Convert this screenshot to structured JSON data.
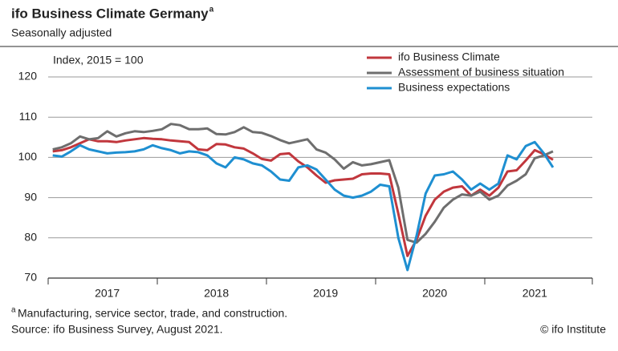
{
  "chart_data": {
    "type": "line",
    "title": "ifo Business Climate Germany",
    "title_marker": "a",
    "subtitle": "Seasonally adjusted",
    "y_label": "Index, 2015 = 100",
    "footnote": "Manufacturing, service sector, trade, and construction.",
    "source": "Source: ifo Business Survey, August 2021.",
    "credit": "© ifo Institute",
    "categories": [
      null,
      null,
      null,
      null,
      null,
      null,
      "2017",
      null,
      null,
      null,
      null,
      null,
      null,
      null,
      null,
      null,
      null,
      null,
      "2018",
      null,
      null,
      null,
      null,
      null,
      null,
      null,
      null,
      null,
      null,
      null,
      "2019",
      null,
      null,
      null,
      null,
      null,
      null,
      null,
      null,
      null,
      null,
      null,
      "2020",
      null,
      null,
      null,
      null,
      null,
      null,
      null,
      null,
      null,
      null,
      "2021",
      null,
      null
    ],
    "series": [
      {
        "name": "ifo Business Climate",
        "color": "#c1373d",
        "values": [
          101.5,
          101.8,
          102.5,
          103.5,
          104.5,
          104.0,
          104.0,
          103.8,
          104.2,
          104.5,
          104.8,
          104.6,
          104.5,
          104.2,
          104.0,
          103.8,
          102.0,
          101.8,
          103.3,
          103.2,
          102.5,
          102.2,
          101.0,
          99.6,
          99.2,
          100.8,
          101.0,
          99.0,
          97.5,
          95.5,
          93.7,
          94.3,
          94.5,
          94.7,
          95.8,
          96.0,
          96.0,
          95.8,
          86.0,
          75.5,
          79.5,
          85.5,
          89.5,
          91.5,
          92.5,
          92.8,
          90.5,
          92.0,
          90.5,
          92.5,
          96.5,
          96.8,
          99.2,
          101.8,
          100.8,
          99.4
        ]
      },
      {
        "name": "Assessment of business situation",
        "color": "#6e6e6e",
        "values": [
          102.0,
          102.5,
          103.5,
          105.2,
          104.5,
          104.8,
          106.5,
          105.2,
          106.0,
          106.5,
          106.3,
          106.6,
          107.0,
          108.3,
          108.0,
          107.0,
          107.0,
          107.2,
          105.8,
          105.7,
          106.3,
          107.5,
          106.3,
          106.1,
          105.3,
          104.3,
          103.5,
          104.0,
          104.5,
          102.0,
          101.2,
          99.5,
          97.2,
          98.8,
          98.0,
          98.3,
          98.8,
          99.3,
          92.5,
          79.5,
          78.8,
          81.0,
          84.0,
          87.5,
          89.5,
          90.8,
          90.5,
          91.5,
          89.5,
          90.5,
          93.0,
          94.2,
          95.8,
          99.8,
          100.5,
          101.5
        ]
      },
      {
        "name": "Business expectations",
        "color": "#1e8fd1",
        "values": [
          100.5,
          100.2,
          101.5,
          103.0,
          102.0,
          101.5,
          101.0,
          101.2,
          101.3,
          101.5,
          102.0,
          103.0,
          102.3,
          101.8,
          101.0,
          101.5,
          101.3,
          100.5,
          98.5,
          97.5,
          100.0,
          99.5,
          98.5,
          98.0,
          96.5,
          94.5,
          94.2,
          97.5,
          98.0,
          97.0,
          94.5,
          92.0,
          90.5,
          90.0,
          90.5,
          91.5,
          93.2,
          92.8,
          80.0,
          72.0,
          80.5,
          91.0,
          95.5,
          95.8,
          96.5,
          94.5,
          92.0,
          93.5,
          92.0,
          93.5,
          100.5,
          99.5,
          102.8,
          103.8,
          101.0,
          97.5
        ]
      }
    ],
    "ylim": [
      70,
      120
    ],
    "yticks": [
      70,
      80,
      90,
      100,
      110,
      120
    ],
    "grid": true
  }
}
